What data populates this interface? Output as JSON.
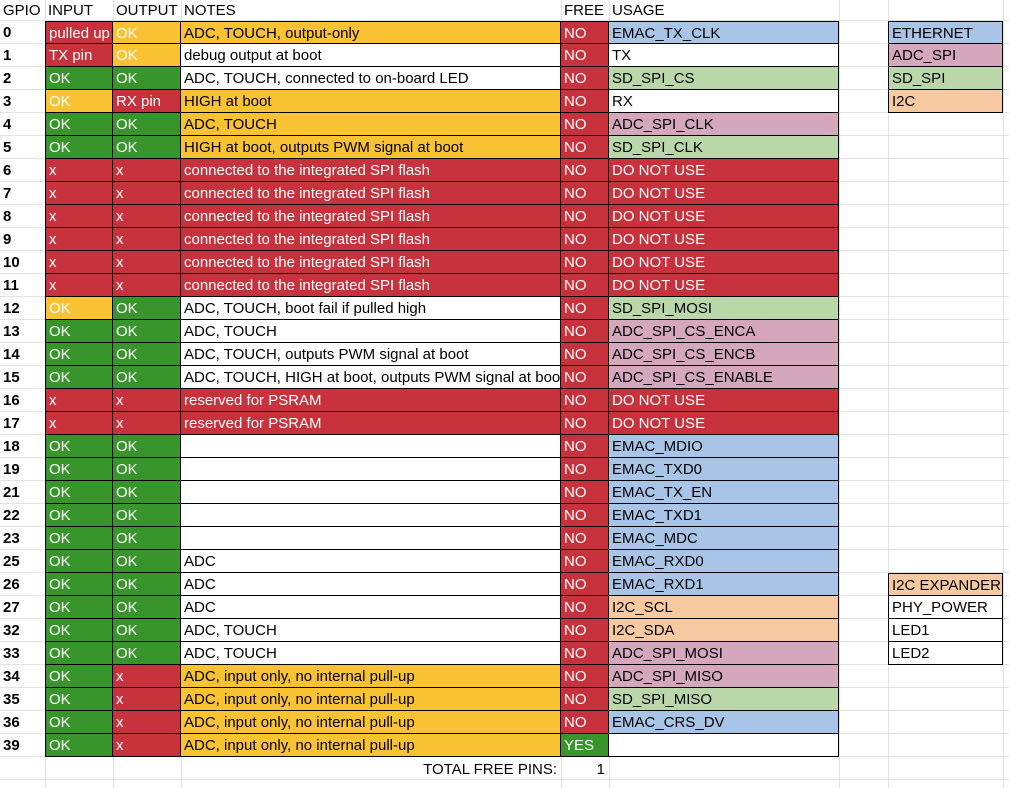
{
  "headers": {
    "gpio": "GPIO",
    "input": "INPUT",
    "output": "OUTPUT",
    "notes": "NOTES",
    "free": "FREE",
    "usage": "USAGE"
  },
  "colors": {
    "red": "#c7323d",
    "green": "#38952b",
    "yellow": "#f9c232",
    "blue": "#a8c4e6",
    "purple": "#d4a7bd",
    "light_green": "#b9d7a8",
    "peach": "#f6c9a1"
  },
  "rows": [
    {
      "gpio": "0",
      "input": "pulled up",
      "input_color": "red",
      "output": "OK",
      "output_color": "yellow",
      "notes": "ADC, TOUCH, output-only",
      "notes_color": "yellow",
      "free": "NO",
      "free_color": "red",
      "usage": "EMAC_TX_CLK",
      "usage_color": "blue"
    },
    {
      "gpio": "1",
      "input": "TX pin",
      "input_color": "red",
      "output": "OK",
      "output_color": "yellow",
      "notes": "debug output at boot",
      "notes_color": "white",
      "free": "NO",
      "free_color": "red",
      "usage": "TX",
      "usage_color": "white"
    },
    {
      "gpio": "2",
      "input": "OK",
      "input_color": "green",
      "output": "OK",
      "output_color": "green",
      "notes": "ADC, TOUCH, connected to on-board LED",
      "notes_color": "white",
      "free": "NO",
      "free_color": "red",
      "usage": "SD_SPI_CS",
      "usage_color": "light_green"
    },
    {
      "gpio": "3",
      "input": "OK",
      "input_color": "yellow",
      "output": "RX pin",
      "output_color": "red",
      "notes": "HIGH at boot",
      "notes_color": "yellow",
      "free": "NO",
      "free_color": "red",
      "usage": "RX",
      "usage_color": "white"
    },
    {
      "gpio": "4",
      "input": "OK",
      "input_color": "green",
      "output": "OK",
      "output_color": "green",
      "notes": "ADC, TOUCH",
      "notes_color": "yellow",
      "free": "NO",
      "free_color": "red",
      "usage": "ADC_SPI_CLK",
      "usage_color": "purple"
    },
    {
      "gpio": "5",
      "input": "OK",
      "input_color": "green",
      "output": "OK",
      "output_color": "green",
      "notes": "HIGH at boot, outputs PWM signal at boot",
      "notes_color": "yellow",
      "free": "NO",
      "free_color": "red",
      "usage": "SD_SPI_CLK",
      "usage_color": "light_green"
    },
    {
      "gpio": "6",
      "input": "x",
      "input_color": "red",
      "output": "x",
      "output_color": "red",
      "notes": "connected to the integrated SPI flash",
      "notes_color": "red",
      "free": "NO",
      "free_color": "red",
      "usage": "DO NOT USE",
      "usage_color": "red"
    },
    {
      "gpio": "7",
      "input": "x",
      "input_color": "red",
      "output": "x",
      "output_color": "red",
      "notes": "connected to the integrated SPI flash",
      "notes_color": "red",
      "free": "NO",
      "free_color": "red",
      "usage": "DO NOT USE",
      "usage_color": "red"
    },
    {
      "gpio": "8",
      "input": "x",
      "input_color": "red",
      "output": "x",
      "output_color": "red",
      "notes": "connected to the integrated SPI flash",
      "notes_color": "red",
      "free": "NO",
      "free_color": "red",
      "usage": "DO NOT USE",
      "usage_color": "red"
    },
    {
      "gpio": "9",
      "input": "x",
      "input_color": "red",
      "output": "x",
      "output_color": "red",
      "notes": "connected to the integrated SPI flash",
      "notes_color": "red",
      "free": "NO",
      "free_color": "red",
      "usage": "DO NOT USE",
      "usage_color": "red"
    },
    {
      "gpio": "10",
      "input": "x",
      "input_color": "red",
      "output": "x",
      "output_color": "red",
      "notes": "connected to the integrated SPI flash",
      "notes_color": "red",
      "free": "NO",
      "free_color": "red",
      "usage": "DO NOT USE",
      "usage_color": "red"
    },
    {
      "gpio": "11",
      "input": "x",
      "input_color": "red",
      "output": "x",
      "output_color": "red",
      "notes": "connected to the integrated SPI flash",
      "notes_color": "red",
      "free": "NO",
      "free_color": "red",
      "usage": "DO NOT USE",
      "usage_color": "red"
    },
    {
      "gpio": "12",
      "input": "OK",
      "input_color": "yellow",
      "output": "OK",
      "output_color": "green",
      "notes": "ADC, TOUCH, boot fail if pulled high",
      "notes_color": "white",
      "free": "NO",
      "free_color": "red",
      "usage": "SD_SPI_MOSI",
      "usage_color": "light_green"
    },
    {
      "gpio": "13",
      "input": "OK",
      "input_color": "green",
      "output": "OK",
      "output_color": "green",
      "notes": "ADC, TOUCH",
      "notes_color": "white",
      "free": "NO",
      "free_color": "red",
      "usage": "ADC_SPI_CS_ENCA",
      "usage_color": "purple"
    },
    {
      "gpio": "14",
      "input": "OK",
      "input_color": "green",
      "output": "OK",
      "output_color": "green",
      "notes": "ADC, TOUCH, outputs PWM signal at boot",
      "notes_color": "white",
      "free": "NO",
      "free_color": "red",
      "usage": "ADC_SPI_CS_ENCB",
      "usage_color": "purple"
    },
    {
      "gpio": "15",
      "input": "OK",
      "input_color": "green",
      "output": "OK",
      "output_color": "green",
      "notes": "ADC, TOUCH, HIGH at boot, outputs PWM signal at boot",
      "notes_color": "white",
      "free": "NO",
      "free_color": "red",
      "usage": "ADC_SPI_CS_ENABLE",
      "usage_color": "purple"
    },
    {
      "gpio": "16",
      "input": "x",
      "input_color": "red",
      "output": "x",
      "output_color": "red",
      "notes": "reserved for PSRAM",
      "notes_color": "red",
      "free": "NO",
      "free_color": "red",
      "usage": "DO NOT USE",
      "usage_color": "red"
    },
    {
      "gpio": "17",
      "input": "x",
      "input_color": "red",
      "output": "x",
      "output_color": "red",
      "notes": "reserved for PSRAM",
      "notes_color": "red",
      "free": "NO",
      "free_color": "red",
      "usage": "DO NOT USE",
      "usage_color": "red"
    },
    {
      "gpio": "18",
      "input": "OK",
      "input_color": "green",
      "output": "OK",
      "output_color": "green",
      "notes": "",
      "notes_color": "white",
      "free": "NO",
      "free_color": "red",
      "usage": "EMAC_MDIO",
      "usage_color": "blue"
    },
    {
      "gpio": "19",
      "input": "OK",
      "input_color": "green",
      "output": "OK",
      "output_color": "green",
      "notes": "",
      "notes_color": "white",
      "free": "NO",
      "free_color": "red",
      "usage": "EMAC_TXD0",
      "usage_color": "blue"
    },
    {
      "gpio": "21",
      "input": "OK",
      "input_color": "green",
      "output": "OK",
      "output_color": "green",
      "notes": "",
      "notes_color": "white",
      "free": "NO",
      "free_color": "red",
      "usage": "EMAC_TX_EN",
      "usage_color": "blue"
    },
    {
      "gpio": "22",
      "input": "OK",
      "input_color": "green",
      "output": "OK",
      "output_color": "green",
      "notes": "",
      "notes_color": "white",
      "free": "NO",
      "free_color": "red",
      "usage": "EMAC_TXD1",
      "usage_color": "blue"
    },
    {
      "gpio": "23",
      "input": "OK",
      "input_color": "green",
      "output": "OK",
      "output_color": "green",
      "notes": "",
      "notes_color": "white",
      "free": "NO",
      "free_color": "red",
      "usage": "EMAC_MDC",
      "usage_color": "blue"
    },
    {
      "gpio": "25",
      "input": "OK",
      "input_color": "green",
      "output": "OK",
      "output_color": "green",
      "notes": "ADC",
      "notes_color": "white",
      "free": "NO",
      "free_color": "red",
      "usage": "EMAC_RXD0",
      "usage_color": "blue"
    },
    {
      "gpio": "26",
      "input": "OK",
      "input_color": "green",
      "output": "OK",
      "output_color": "green",
      "notes": "ADC",
      "notes_color": "white",
      "free": "NO",
      "free_color": "red",
      "usage": "EMAC_RXD1",
      "usage_color": "blue"
    },
    {
      "gpio": "27",
      "input": "OK",
      "input_color": "green",
      "output": "OK",
      "output_color": "green",
      "notes": "ADC",
      "notes_color": "white",
      "free": "NO",
      "free_color": "red",
      "usage": "I2C_SCL",
      "usage_color": "peach"
    },
    {
      "gpio": "32",
      "input": "OK",
      "input_color": "green",
      "output": "OK",
      "output_color": "green",
      "notes": "ADC, TOUCH",
      "notes_color": "white",
      "free": "NO",
      "free_color": "red",
      "usage": "I2C_SDA",
      "usage_color": "peach"
    },
    {
      "gpio": "33",
      "input": "OK",
      "input_color": "green",
      "output": "OK",
      "output_color": "green",
      "notes": "ADC, TOUCH",
      "notes_color": "white",
      "free": "NO",
      "free_color": "red",
      "usage": "ADC_SPI_MOSI",
      "usage_color": "purple"
    },
    {
      "gpio": "34",
      "input": "OK",
      "input_color": "green",
      "output": "x",
      "output_color": "red",
      "notes": "ADC, input only, no internal pull-up",
      "notes_color": "yellow",
      "free": "NO",
      "free_color": "red",
      "usage": "ADC_SPI_MISO",
      "usage_color": "purple"
    },
    {
      "gpio": "35",
      "input": "OK",
      "input_color": "green",
      "output": "x",
      "output_color": "red",
      "notes": "ADC, input only, no internal pull-up",
      "notes_color": "yellow",
      "free": "NO",
      "free_color": "red",
      "usage": "SD_SPI_MISO",
      "usage_color": "light_green"
    },
    {
      "gpio": "36",
      "input": "OK",
      "input_color": "green",
      "output": "x",
      "output_color": "red",
      "notes": "ADC, input only, no internal pull-up",
      "notes_color": "yellow",
      "free": "NO",
      "free_color": "red",
      "usage": "EMAC_CRS_DV",
      "usage_color": "blue"
    },
    {
      "gpio": "39",
      "input": "OK",
      "input_color": "green",
      "output": "x",
      "output_color": "red",
      "notes": "ADC, input only, no internal pull-up",
      "notes_color": "yellow",
      "free": "YES",
      "free_color": "green",
      "usage": "",
      "usage_color": "white"
    }
  ],
  "total": {
    "label": "TOTAL FREE PINS:",
    "value": "1"
  },
  "legend_top": [
    {
      "label": "ETHERNET",
      "color": "blue"
    },
    {
      "label": "ADC_SPI",
      "color": "purple"
    },
    {
      "label": "SD_SPI",
      "color": "light_green"
    },
    {
      "label": "I2C",
      "color": "peach"
    }
  ],
  "legend_bottom": [
    {
      "label": "I2C EXPANDER",
      "color": "peach"
    },
    {
      "label": "PHY_POWER",
      "color": "white"
    },
    {
      "label": "LED1",
      "color": "white"
    },
    {
      "label": "LED2",
      "color": "white"
    }
  ]
}
